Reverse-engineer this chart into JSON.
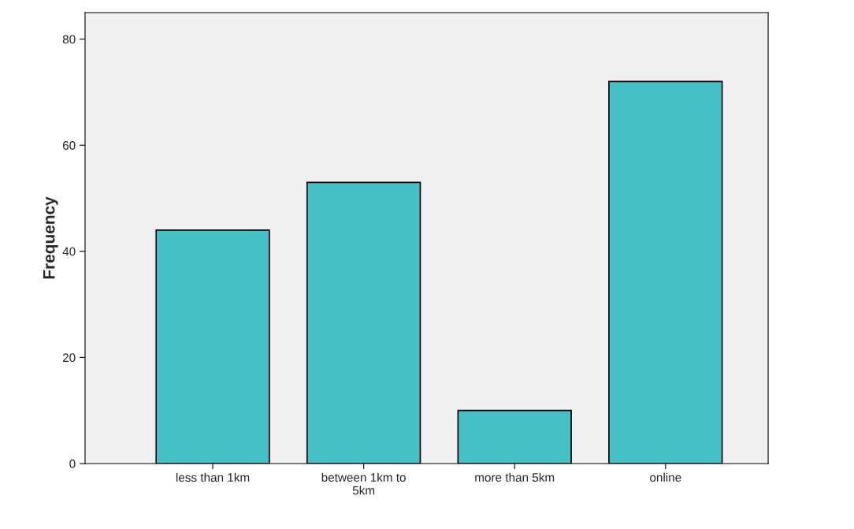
{
  "chart_data": {
    "type": "bar",
    "ylabel": "Frequency",
    "categories": [
      "less than 1km",
      "between 1km to\n5km",
      "more than 5km",
      "online"
    ],
    "values": [
      44,
      53,
      10,
      72
    ],
    "color": "#46c0c5",
    "ylim": [
      0,
      85
    ],
    "yticks": [
      0,
      20,
      40,
      60,
      80
    ],
    "grid": false,
    "legend": false
  }
}
